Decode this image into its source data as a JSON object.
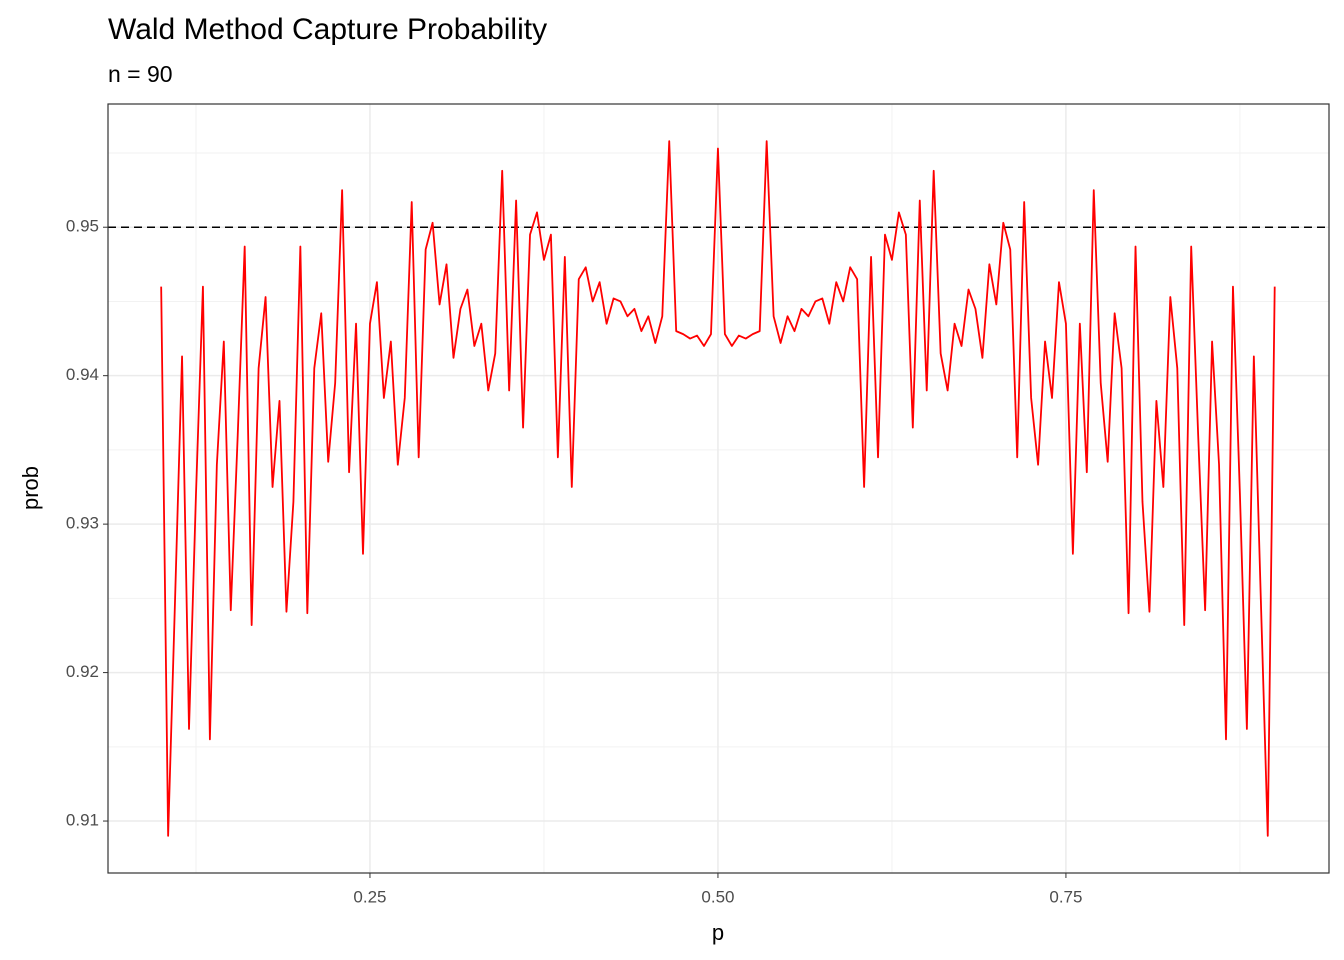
{
  "chart_data": {
    "type": "line",
    "title": "Wald Method Capture Probability",
    "subtitle": "n =  90",
    "xlabel": "p",
    "ylabel": "prob",
    "color": "#ff0000",
    "x": [
      0.1,
      0.105,
      0.11,
      0.115,
      0.12,
      0.125,
      0.13,
      0.135,
      0.14,
      0.145,
      0.15,
      0.155,
      0.16,
      0.165,
      0.17,
      0.175,
      0.18,
      0.185,
      0.19,
      0.195,
      0.2,
      0.205,
      0.21,
      0.215,
      0.22,
      0.225,
      0.23,
      0.235,
      0.24,
      0.245,
      0.25,
      0.255,
      0.26,
      0.265,
      0.27,
      0.275,
      0.28,
      0.285,
      0.29,
      0.295,
      0.3,
      0.305,
      0.31,
      0.315,
      0.32,
      0.325,
      0.33,
      0.335,
      0.34,
      0.345,
      0.35,
      0.355,
      0.36,
      0.365,
      0.37,
      0.375,
      0.38,
      0.385,
      0.39,
      0.395,
      0.4,
      0.405,
      0.41,
      0.415,
      0.42,
      0.425,
      0.43,
      0.435,
      0.44,
      0.445,
      0.45,
      0.455,
      0.46,
      0.465,
      0.47,
      0.475,
      0.48,
      0.485,
      0.49,
      0.495,
      0.5,
      0.505,
      0.51,
      0.515,
      0.52,
      0.525,
      0.53,
      0.535,
      0.54,
      0.545,
      0.55,
      0.555,
      0.56,
      0.565,
      0.57,
      0.575,
      0.58,
      0.585,
      0.59,
      0.595,
      0.6,
      0.605,
      0.61,
      0.615,
      0.62,
      0.625,
      0.63,
      0.635,
      0.64,
      0.645,
      0.65,
      0.655,
      0.66,
      0.665,
      0.67,
      0.675,
      0.68,
      0.685,
      0.69,
      0.695,
      0.7,
      0.705,
      0.71,
      0.715,
      0.72,
      0.725,
      0.73,
      0.735,
      0.74,
      0.745,
      0.75,
      0.755,
      0.76,
      0.765,
      0.77,
      0.775,
      0.78,
      0.785,
      0.79,
      0.795,
      0.8,
      0.805,
      0.81,
      0.815,
      0.82,
      0.825,
      0.83,
      0.835,
      0.84,
      0.845,
      0.85,
      0.855,
      0.86,
      0.865,
      0.87,
      0.875,
      0.88,
      0.885,
      0.89,
      0.895,
      0.9
    ],
    "values": [
      0.946,
      0.909,
      0.925,
      0.9413,
      0.9162,
      0.932,
      0.946,
      0.9155,
      0.934,
      0.9423,
      0.9242,
      0.936,
      0.9487,
      0.9232,
      0.9405,
      0.9453,
      0.9325,
      0.9383,
      0.9241,
      0.9315,
      0.9487,
      0.924,
      0.9405,
      0.9442,
      0.9342,
      0.9395,
      0.9525,
      0.9335,
      0.9435,
      0.928,
      0.9435,
      0.9463,
      0.9385,
      0.9423,
      0.934,
      0.9385,
      0.9517,
      0.9345,
      0.9485,
      0.9503,
      0.9448,
      0.9475,
      0.9412,
      0.9445,
      0.9458,
      0.942,
      0.9435,
      0.939,
      0.9415,
      0.9538,
      0.939,
      0.9518,
      0.9365,
      0.9495,
      0.951,
      0.9478,
      0.9495,
      0.9345,
      0.948,
      0.9325,
      0.9465,
      0.9473,
      0.945,
      0.9463,
      0.9435,
      0.9452,
      0.945,
      0.944,
      0.9445,
      0.943,
      0.944,
      0.9422,
      0.944,
      0.9558,
      0.943,
      0.9428,
      0.9425,
      0.9427,
      0.942,
      0.9428,
      0.9553,
      0.9428,
      0.942,
      0.9427,
      0.9425,
      0.9428,
      0.943,
      0.9558,
      0.944,
      0.9422,
      0.944,
      0.943,
      0.9445,
      0.944,
      0.945,
      0.9452,
      0.9435,
      0.9463,
      0.945,
      0.9473,
      0.9465,
      0.9325,
      0.948,
      0.9345,
      0.9495,
      0.9478,
      0.951,
      0.9495,
      0.9365,
      0.9518,
      0.939,
      0.9538,
      0.9415,
      0.939,
      0.9435,
      0.942,
      0.9458,
      0.9445,
      0.9412,
      0.9475,
      0.9448,
      0.9503,
      0.9485,
      0.9345,
      0.9517,
      0.9385,
      0.934,
      0.9423,
      0.9385,
      0.9463,
      0.9435,
      0.928,
      0.9435,
      0.9335,
      0.9525,
      0.9395,
      0.9342,
      0.9442,
      0.9405,
      0.924,
      0.9487,
      0.9315,
      0.9241,
      0.9383,
      0.9325,
      0.9453,
      0.9405,
      0.9232,
      0.9487,
      0.936,
      0.9242,
      0.9423,
      0.934,
      0.9155,
      0.946,
      0.932,
      0.9162,
      0.9413,
      0.925,
      0.909,
      0.946
    ],
    "hline": 0.95,
    "xlim": [
      0.0618,
      0.939
    ],
    "ylim": [
      0.9065,
      0.9583
    ],
    "xticks": [
      {
        "value": 0.25,
        "label": "0.25"
      },
      {
        "value": 0.5,
        "label": "0.50"
      },
      {
        "value": 0.75,
        "label": "0.75"
      }
    ],
    "yticks": [
      0.91,
      0.92,
      0.93,
      0.94,
      0.95
    ],
    "xminor": [
      0.125,
      0.375,
      0.625,
      0.875
    ],
    "yminor": [
      0.915,
      0.925,
      0.935,
      0.945,
      0.955
    ],
    "grid": true
  }
}
